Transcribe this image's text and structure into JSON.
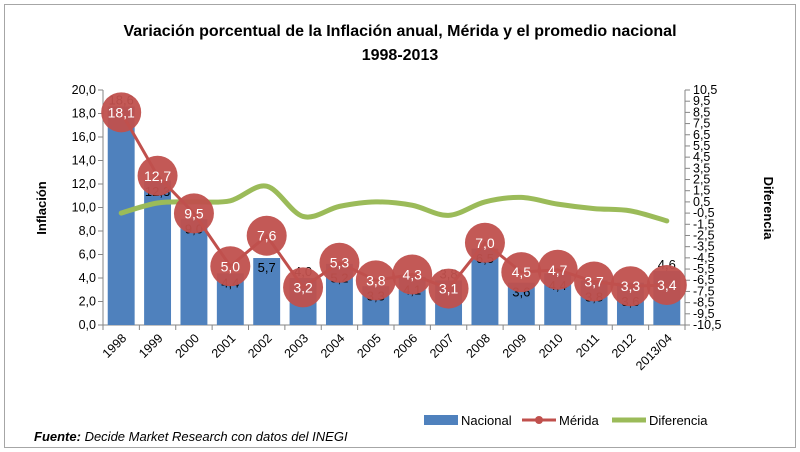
{
  "chart_data": {
    "type": "bar",
    "title": "Variación porcentual de la Inflación anual, Mérida y  el promedio nacional",
    "subtitle": "1998-2013",
    "categories": [
      "1998",
      "1999",
      "2000",
      "2001",
      "2002",
      "2003",
      "2004",
      "2005",
      "2006",
      "2007",
      "2008",
      "2009",
      "2010",
      "2011",
      "2012",
      "2013/04"
    ],
    "series": [
      {
        "name": "Nacional",
        "type": "bar",
        "axis": "left",
        "color": "#4f81bd",
        "values": [
          18.6,
          12.3,
          9.0,
          4.4,
          5.7,
          4.0,
          5.2,
          3.3,
          4.1,
          3.8,
          6.5,
          3.6,
          4.4,
          3.8,
          3.6,
          4.6
        ],
        "labels": [
          "18,6",
          "12,3",
          "9,0",
          "4,4",
          "5,7",
          "4,0",
          "5,2",
          "3,3",
          "4,1",
          "3,8",
          "6,5",
          "3,6",
          "4,4",
          "3,8",
          "3,6",
          "4,6"
        ]
      },
      {
        "name": "Mérida",
        "type": "line",
        "axis": "left",
        "color": "#c0504d",
        "values": [
          18.1,
          12.7,
          9.5,
          5.0,
          7.6,
          3.2,
          5.3,
          3.8,
          4.3,
          3.1,
          7.0,
          4.5,
          4.7,
          3.7,
          3.3,
          3.4
        ],
        "labels": [
          "18,1",
          "12,7",
          "9,5",
          "5,0",
          "7,6",
          "3,2",
          "5,3",
          "3,8",
          "4,3",
          "3,1",
          "7,0",
          "4,5",
          "4,7",
          "3,7",
          "3,3",
          "3,4"
        ]
      },
      {
        "name": "Diferencia",
        "type": "line",
        "axis": "right",
        "color": "#9bbb59",
        "values": [
          -0.5,
          0.4,
          0.5,
          0.6,
          1.9,
          -0.8,
          0.1,
          0.5,
          0.2,
          -0.7,
          0.5,
          0.9,
          0.3,
          -0.1,
          -0.3,
          -1.2
        ]
      }
    ],
    "ylabel": "Inflación",
    "y2label": "Diferencia",
    "ylim": [
      0,
      20
    ],
    "y2lim": [
      -10.5,
      10.5
    ],
    "yticks": [
      "0,0",
      "2,0",
      "4,0",
      "6,0",
      "8,0",
      "10,0",
      "12,0",
      "14,0",
      "16,0",
      "18,0",
      "20,0"
    ],
    "y2ticks": [
      "10,5",
      "9,5",
      "8,5",
      "7,5",
      "6,5",
      "5,5",
      "4,5",
      "3,5",
      "2,5",
      "1,5",
      "0,5",
      "-0,5",
      "-1,5",
      "-2,5",
      "-3,5",
      "-4,5",
      "-5,5",
      "-6,5",
      "-7,5",
      "-8,5",
      "-9,5",
      "-10,5"
    ],
    "grid": false,
    "legend": "bottom-right",
    "source_bold": "Fuente:",
    "source_text": " Decide Market Research con datos del INEGI"
  }
}
